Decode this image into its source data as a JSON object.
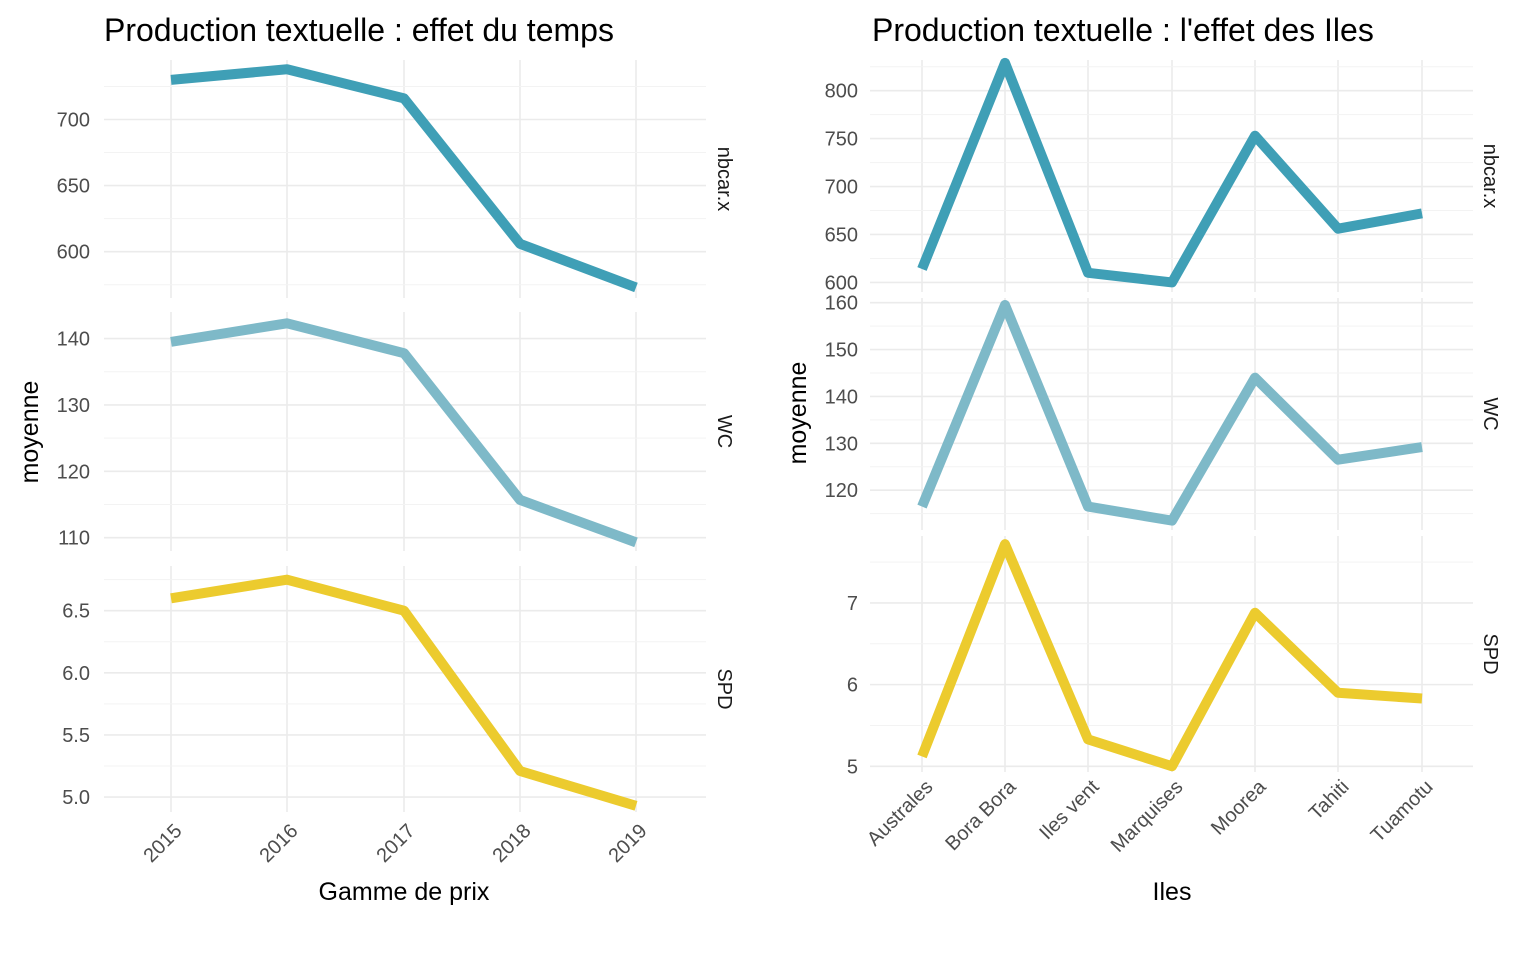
{
  "colors": {
    "nbcar_x": "#3f9fb6",
    "WC": "#7eb9c8",
    "SPD": "#eccb2e"
  },
  "chart_data": [
    {
      "type": "line",
      "title": "Production textuelle : effet du temps",
      "xlabel": "Gamme de prix",
      "ylabel": "moyenne",
      "categories": [
        "2015",
        "2016",
        "2017",
        "2018",
        "2019"
      ],
      "grid": true,
      "facets": [
        {
          "name": "nbcar.x",
          "values": [
            730,
            738,
            716,
            606,
            573
          ],
          "ylim": [
            565,
            745
          ],
          "yticks": [
            600,
            650,
            700
          ]
        },
        {
          "name": "WC",
          "values": [
            139.5,
            142.3,
            137.8,
            115.7,
            109.3
          ],
          "ylim": [
            108,
            144
          ],
          "yticks": [
            110,
            120,
            130,
            140
          ]
        },
        {
          "name": "SPD",
          "values": [
            6.6,
            6.75,
            6.5,
            5.21,
            4.93
          ],
          "ylim": [
            4.88,
            6.86
          ],
          "yticks": [
            5.0,
            5.5,
            6.0,
            6.5
          ],
          "ytick_labels": [
            "5.0",
            "5.5",
            "6.0",
            "6.5"
          ]
        }
      ]
    },
    {
      "type": "line",
      "title": "Production textuelle : l'effet des Iles",
      "xlabel": "Iles",
      "ylabel": "moyenne",
      "categories": [
        "Australes",
        "Bora Bora",
        "Iles vent",
        "Marquises",
        "Moorea",
        "Tahiti",
        "Tuamotu"
      ],
      "grid": true,
      "facets": [
        {
          "name": "nbcar.x",
          "values": [
            614,
            829,
            610,
            600,
            753,
            656,
            672
          ],
          "ylim": [
            590,
            832
          ],
          "yticks": [
            600,
            650,
            700,
            750,
            800
          ]
        },
        {
          "name": "WC",
          "values": [
            116.5,
            159.5,
            116.5,
            113.5,
            144,
            126.5,
            129.2
          ],
          "ylim": [
            111.5,
            161
          ],
          "yticks": [
            120,
            130,
            140,
            150,
            160
          ]
        },
        {
          "name": "SPD",
          "values": [
            5.12,
            7.72,
            5.33,
            5.0,
            6.88,
            5.9,
            5.83
          ],
          "ylim": [
            4.93,
            7.82
          ],
          "yticks": [
            5,
            6,
            7
          ]
        }
      ]
    }
  ]
}
